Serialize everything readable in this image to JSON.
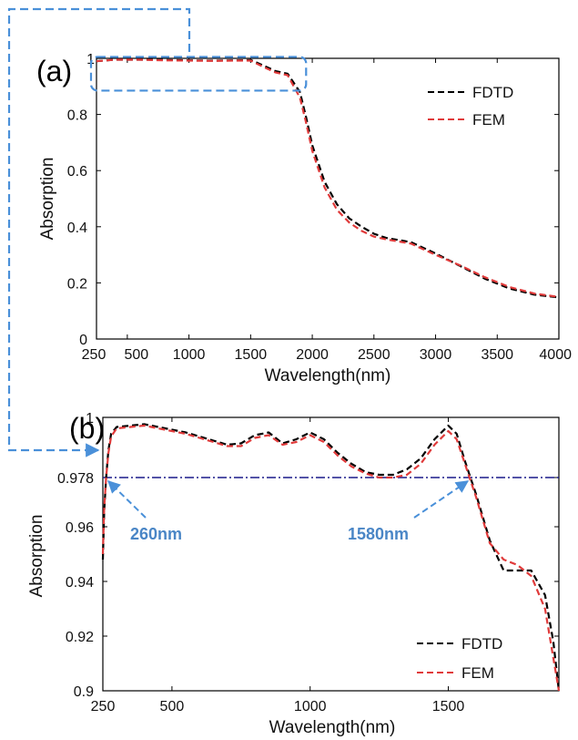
{
  "colors": {
    "fdtd": "#000000",
    "fem": "#e03a3a",
    "highlight": "#4a90d9",
    "threshold": "#1a1a8a",
    "annotation": "#4a86c6"
  },
  "chart_data": [
    {
      "type": "line",
      "panel_label": "(a)",
      "xlabel": "Wavelength(nm)",
      "ylabel": "Absorption",
      "xlim": [
        250,
        4000
      ],
      "ylim": [
        0,
        1
      ],
      "xticks": [
        250,
        500,
        1000,
        1500,
        2000,
        2500,
        3000,
        3500,
        4000
      ],
      "xtick_labels": [
        "250",
        "500",
        "1000",
        "1500",
        "2000",
        "2500",
        "3000",
        "3500",
        "4000"
      ],
      "yticks": [
        0,
        0.2,
        0.4,
        0.6,
        0.8,
        1
      ],
      "ytick_labels": [
        "0",
        "0.2",
        "0.4",
        "0.6",
        "0.8",
        "1"
      ],
      "legend": {
        "position": "top-right",
        "entries": [
          "FDTD",
          "FEM"
        ]
      },
      "grid": false,
      "series": [
        {
          "name": "FDTD",
          "color": "#000000",
          "dash": "dashed",
          "x": [
            250,
            400,
            600,
            800,
            1000,
            1200,
            1400,
            1500,
            1600,
            1700,
            1800,
            1900,
            1950,
            2000,
            2100,
            2200,
            2300,
            2400,
            2500,
            2600,
            2800,
            3000,
            3200,
            3400,
            3600,
            3800,
            4000
          ],
          "y": [
            0.99,
            0.995,
            0.995,
            0.994,
            0.993,
            0.992,
            0.993,
            0.994,
            0.975,
            0.955,
            0.945,
            0.88,
            0.79,
            0.69,
            0.56,
            0.48,
            0.43,
            0.4,
            0.375,
            0.36,
            0.345,
            0.305,
            0.26,
            0.215,
            0.18,
            0.158,
            0.148
          ]
        },
        {
          "name": "FEM",
          "color": "#e03a3a",
          "dash": "dashed",
          "x": [
            250,
            400,
            600,
            800,
            1000,
            1200,
            1400,
            1500,
            1600,
            1700,
            1800,
            1900,
            1950,
            2000,
            2100,
            2200,
            2300,
            2400,
            2500,
            2600,
            2800,
            3000,
            3200,
            3400,
            3600,
            3800,
            4000
          ],
          "y": [
            0.99,
            0.995,
            0.995,
            0.993,
            0.992,
            0.991,
            0.992,
            0.992,
            0.97,
            0.95,
            0.94,
            0.86,
            0.77,
            0.67,
            0.54,
            0.46,
            0.415,
            0.385,
            0.365,
            0.355,
            0.34,
            0.3,
            0.262,
            0.22,
            0.185,
            0.162,
            0.15
          ]
        }
      ],
      "annotations": [
        {
          "type": "highlight-box",
          "x_range": [
            250,
            1950
          ],
          "y_range": [
            0.885,
            1.005
          ]
        }
      ]
    },
    {
      "type": "line",
      "panel_label": "(b)",
      "xlabel": "Wavelength(nm)",
      "ylabel": "Absorption",
      "xlim": [
        250,
        1900
      ],
      "ylim": [
        0.9,
        1
      ],
      "xticks": [
        250,
        500,
        1000,
        1500
      ],
      "xtick_labels": [
        "250",
        "500",
        "1000",
        "1500"
      ],
      "yticks": [
        0.9,
        0.92,
        0.94,
        0.96,
        0.978,
        1
      ],
      "ytick_labels": [
        "0.9",
        "0.92",
        "0.94",
        "0.96",
        "0.978",
        "1"
      ],
      "legend": {
        "position": "bottom-right",
        "entries": [
          "FDTD",
          "FEM"
        ]
      },
      "grid": false,
      "threshold": {
        "y": 0.978
      },
      "series": [
        {
          "name": "FDTD",
          "color": "#000000",
          "dash": "dashed",
          "x": [
            250,
            255,
            262,
            270,
            280,
            300,
            350,
            400,
            450,
            500,
            550,
            600,
            650,
            700,
            750,
            800,
            850,
            900,
            950,
            1000,
            1050,
            1100,
            1150,
            1200,
            1250,
            1300,
            1350,
            1400,
            1450,
            1500,
            1530,
            1560,
            1580,
            1600,
            1650,
            1700,
            1750,
            1800,
            1850,
            1880,
            1900
          ],
          "y": [
            0.948,
            0.966,
            0.978,
            0.988,
            0.994,
            0.9965,
            0.997,
            0.9975,
            0.9965,
            0.9955,
            0.9945,
            0.993,
            0.9915,
            0.99,
            0.9905,
            0.9935,
            0.9945,
            0.9905,
            0.992,
            0.9945,
            0.992,
            0.987,
            0.983,
            0.98,
            0.979,
            0.979,
            0.981,
            0.985,
            0.992,
            0.997,
            0.994,
            0.984,
            0.978,
            0.972,
            0.955,
            0.944,
            0.944,
            0.944,
            0.935,
            0.918,
            0.9
          ]
        },
        {
          "name": "FEM",
          "color": "#e03a3a",
          "dash": "dashed",
          "x": [
            250,
            255,
            262,
            270,
            280,
            300,
            350,
            400,
            450,
            500,
            550,
            600,
            650,
            700,
            750,
            800,
            850,
            900,
            950,
            1000,
            1050,
            1100,
            1150,
            1200,
            1250,
            1300,
            1350,
            1400,
            1450,
            1500,
            1530,
            1560,
            1580,
            1600,
            1650,
            1700,
            1750,
            1800,
            1850,
            1880,
            1900
          ],
          "y": [
            0.95,
            0.967,
            0.978,
            0.987,
            0.993,
            0.996,
            0.9965,
            0.997,
            0.996,
            0.995,
            0.994,
            0.9925,
            0.991,
            0.9895,
            0.9895,
            0.9925,
            0.9935,
            0.99,
            0.991,
            0.9935,
            0.991,
            0.986,
            0.982,
            0.9795,
            0.978,
            0.978,
            0.979,
            0.983,
            0.99,
            0.995,
            0.992,
            0.983,
            0.977,
            0.971,
            0.954,
            0.948,
            0.946,
            0.942,
            0.93,
            0.912,
            0.9
          ]
        }
      ],
      "annotations": [
        {
          "text": "260nm",
          "x": 260,
          "y": 0.978
        },
        {
          "text": "1580nm",
          "x": 1580,
          "y": 0.978
        }
      ]
    }
  ]
}
